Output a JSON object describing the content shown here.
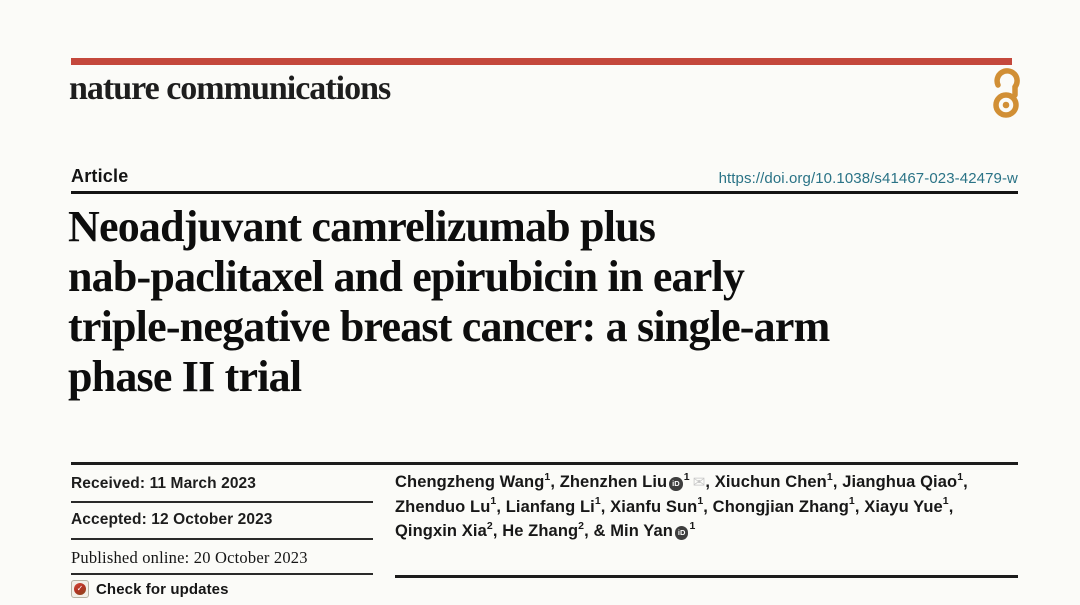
{
  "masthead": {
    "journal_name": "nature communications",
    "open_access_icon": "open-access-padlock"
  },
  "article_header": {
    "type_label": "Article",
    "doi_link": "https://doi.org/10.1038/s41467-023-42479-w"
  },
  "title": {
    "lines": [
      "Neoadjuvant camrelizumab plus",
      "nab-paclitaxel and epirubicin in early",
      "triple-negative breast cancer: a single-arm",
      "phase II trial"
    ]
  },
  "history": {
    "received": {
      "label": "Received:",
      "value": "11 March 2023"
    },
    "accepted": {
      "label": "Accepted:",
      "value": "12 October 2023"
    },
    "published": {
      "label": "Published online:",
      "value": "20 October 2023"
    },
    "check_updates_label": "Check for updates",
    "crossmark_icon": "crossmark-logo"
  },
  "authors": {
    "separator": ", ",
    "last_separator": "& ",
    "list": [
      {
        "name": "Chengzheng Wang",
        "sup": "1"
      },
      {
        "name": "Zhenzhen Liu",
        "orcid": true,
        "sup": "1",
        "email": true
      },
      {
        "name": "Xiuchun Chen",
        "sup": "1"
      },
      {
        "name": "Jianghua Qiao",
        "sup": "1"
      },
      {
        "name": "Zhenduo Lu",
        "sup": "1"
      },
      {
        "name": "Lianfang Li",
        "sup": "1"
      },
      {
        "name": "Xianfu Sun",
        "sup": "1"
      },
      {
        "name": "Chongjian Zhang",
        "sup": "1"
      },
      {
        "name": "Xiayu Yue",
        "sup": "1"
      },
      {
        "name": "Qingxin Xia",
        "sup": "2"
      },
      {
        "name": "He Zhang",
        "sup": "2"
      },
      {
        "name": "Min Yan",
        "orcid": true,
        "sup": "1"
      }
    ]
  },
  "icons": {
    "orcid": "iD",
    "email": "✉",
    "crossmark_check": "✓"
  },
  "colors": {
    "page_background": "#fbfbf8",
    "masthead_bar": "#c4483c",
    "open_access": "#d18f35",
    "doi_link": "#2a7386",
    "text_primary": "#161616",
    "rule_dark": "#1c1c1c",
    "orcid_icon_bg": "#3e3e3e",
    "email_icon": "#c6c6c6",
    "crossmark_red": "#b23323"
  }
}
